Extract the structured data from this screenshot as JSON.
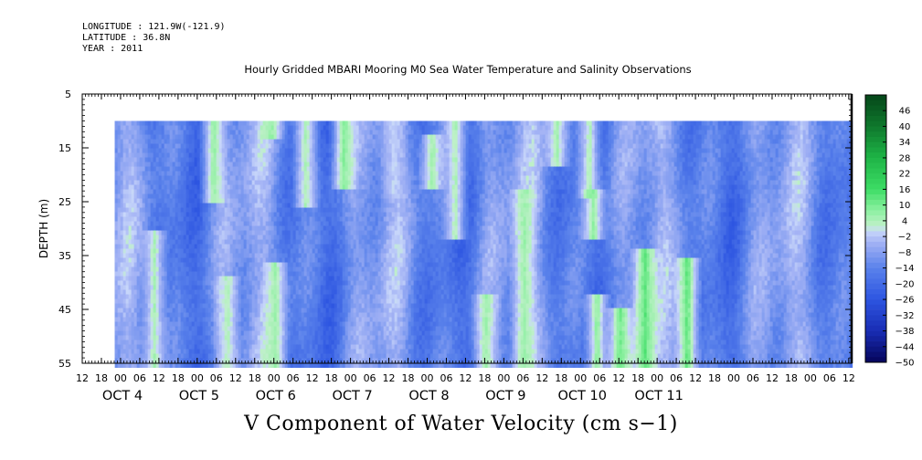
{
  "header": {
    "lines": [
      "LONGITUDE : 121.9W(-121.9)",
      "LATITUDE : 36.8N",
      "YEAR : 2011"
    ]
  },
  "chart_title": "Hourly Gridded MBARI Mooring M0 Sea Water Temperature and Salinity Observations",
  "variable_title": "V Component of Water Velocity (cm s−1)",
  "colors": {
    "darkblue": "#0a1a6e",
    "blue": "#3f6fe6",
    "midblue": "#6f92ec",
    "lightblue": "#a7b9f3",
    "lightgreen": "#a8f0b0",
    "green": "#2fd25a",
    "darkgreen": "#0b5a25"
  },
  "chart_data": {
    "type": "heatmap",
    "title": "Hourly Gridded MBARI Mooring M0 Sea Water Temperature and Salinity Observations",
    "xlabel": "",
    "ylabel": "DEPTH (m)",
    "ylim": [
      5,
      55
    ],
    "y_ticks": [
      5,
      15,
      25,
      35,
      45,
      55
    ],
    "y_minor_step": 5,
    "x_hour_ticks": [
      "12",
      "18",
      "00",
      "06",
      "12",
      "18",
      "00",
      "06",
      "12",
      "18",
      "00",
      "06",
      "12",
      "18",
      "00",
      "06",
      "12",
      "18",
      "00",
      "06",
      "12",
      "18",
      "00",
      "06",
      "12",
      "18",
      "00",
      "06",
      "12",
      "18",
      "00",
      "06",
      "12",
      "18",
      "00",
      "06",
      "12",
      "18",
      "00",
      "06",
      "12"
    ],
    "x_date_labels": [
      {
        "label": "OCT  4",
        "at_hour_index": 2
      },
      {
        "label": "OCT  5",
        "at_hour_index": 6
      },
      {
        "label": "OCT  6",
        "at_hour_index": 10
      },
      {
        "label": "OCT  7",
        "at_hour_index": 14
      },
      {
        "label": "OCT  8",
        "at_hour_index": 18
      },
      {
        "label": "OCT  9",
        "at_hour_index": 22
      },
      {
        "label": "OCT 10",
        "at_hour_index": 26
      },
      {
        "label": "OCT 11",
        "at_hour_index": 30
      }
    ],
    "data_start_hour_index": 1.7,
    "data_top_depth": 10,
    "colorbar": {
      "levels": [
        46,
        40,
        34,
        28,
        22,
        16,
        10,
        4,
        -2,
        -8,
        -14,
        -20,
        -26,
        -32,
        -38,
        -44,
        -50
      ],
      "range": [
        -50,
        52
      ],
      "step": 2
    },
    "features": [
      {
        "center_hour_index": 3.7,
        "depth_range": [
          30,
          55
        ],
        "value": 4
      },
      {
        "center_hour_index": 6.8,
        "depth_range": [
          10,
          25
        ],
        "value": 6
      },
      {
        "center_hour_index": 7.5,
        "depth_range": [
          38,
          55
        ],
        "value": 3
      },
      {
        "center_hour_index": 9.8,
        "depth_range": [
          10,
          13
        ],
        "value": 6
      },
      {
        "center_hour_index": 10.0,
        "depth_range": [
          36,
          55
        ],
        "value": 5
      },
      {
        "center_hour_index": 11.6,
        "depth_range": [
          10,
          26
        ],
        "value": 4
      },
      {
        "center_hour_index": 13.6,
        "depth_range": [
          10,
          22
        ],
        "value": 8
      },
      {
        "center_hour_index": 16.2,
        "depth_range": [
          10,
          24
        ],
        "value": -2
      },
      {
        "center_hour_index": 18.2,
        "depth_range": [
          12,
          22
        ],
        "value": 5
      },
      {
        "center_hour_index": 19.4,
        "depth_range": [
          10,
          32
        ],
        "value": 4
      },
      {
        "center_hour_index": 21.0,
        "depth_range": [
          42,
          55
        ],
        "value": 5
      },
      {
        "center_hour_index": 23.0,
        "depth_range": [
          22,
          55
        ],
        "value": 5
      },
      {
        "center_hour_index": 24.7,
        "depth_range": [
          10,
          18
        ],
        "value": 5
      },
      {
        "center_hour_index": 26.4,
        "depth_range": [
          10,
          24
        ],
        "value": 4
      },
      {
        "center_hour_index": 26.6,
        "depth_range": [
          22,
          32
        ],
        "value": 7
      },
      {
        "center_hour_index": 26.8,
        "depth_range": [
          42,
          55
        ],
        "value": 8
      },
      {
        "center_hour_index": 28.0,
        "depth_range": [
          44,
          55
        ],
        "value": 10
      },
      {
        "center_hour_index": 29.3,
        "depth_range": [
          33,
          55
        ],
        "value": 12
      },
      {
        "center_hour_index": 31.5,
        "depth_range": [
          35,
          55
        ],
        "value": 12
      }
    ]
  }
}
